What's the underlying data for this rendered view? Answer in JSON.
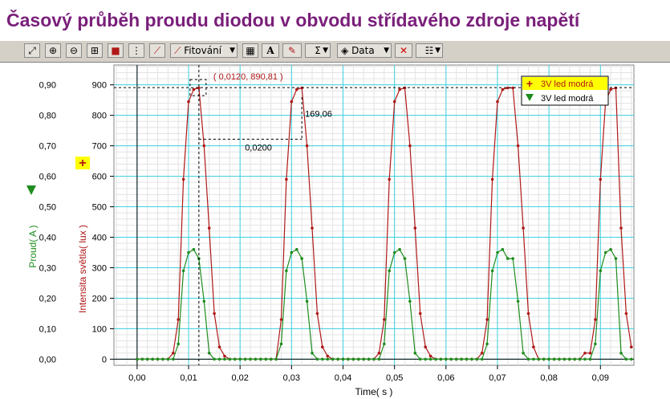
{
  "title": "Časový průběh proudu diodou v obvodu střídavého zdroje napětí",
  "toolbar": {
    "fit_label": "Fitování",
    "data_label": "Data",
    "sigma_label": "Σ",
    "text_tool_label": "A",
    "icons": [
      "autoscale-icon",
      "zoom-in-icon",
      "zoom-out-icon",
      "zoom-box-icon",
      "lock-icon",
      "grid-icon",
      "tangent-icon",
      "fit-icon",
      "calculator-icon",
      "text-icon",
      "draw-icon",
      "sigma-icon",
      "data-icon",
      "delete-icon",
      "options-icon"
    ]
  },
  "chart_data": {
    "type": "line",
    "xlabel": "Time( s )",
    "ylabel_left": "Proud( A )",
    "ylabel_right": "Intensita světla( lux )",
    "xlim": [
      -0.0045,
      0.0965
    ],
    "xticks": [
      "0,00",
      "0,01",
      "0,02",
      "0,03",
      "0,04",
      "0,05",
      "0,06",
      "0,07",
      "0,08",
      "0,09"
    ],
    "ylim_left": [
      -0.02,
      0.965
    ],
    "yticks_left": [
      "0,00",
      "0,10",
      "0,20",
      "0,30",
      "0,40",
      "0,50",
      "0,60",
      "0,70",
      "0,80",
      "0,90"
    ],
    "ylim_right": [
      -20,
      965
    ],
    "yticks_right": [
      "0",
      "100",
      "200",
      "300",
      "400",
      "500",
      "600",
      "700",
      "800",
      "900"
    ],
    "grid": true,
    "legend_position": "top-right",
    "sample_step": 0.001,
    "period": 0.02,
    "peak_times": [
      0.0115,
      0.0315,
      0.0515,
      0.0715,
      0.0915
    ],
    "series": [
      {
        "name": "3V led modrá",
        "axis": "right",
        "color": "#b01818",
        "marker": "plus",
        "pulse_values": [
          0,
          0,
          20,
          130,
          590,
          845,
          885,
          890,
          700,
          430,
          150,
          40,
          10,
          0
        ]
      },
      {
        "name": "3V led modrá",
        "axis": "left",
        "color": "#1e8c1e",
        "marker": "triangle",
        "pulse_values": [
          0,
          0,
          0,
          0.05,
          0.29,
          0.35,
          0.36,
          0.33,
          0.19,
          0.02,
          0,
          0,
          0,
          0
        ]
      }
    ],
    "annotations": {
      "point_label": "( 0,0120, 890,81 )",
      "dx_label": "0,0200",
      "dy_label": "169,06"
    }
  }
}
